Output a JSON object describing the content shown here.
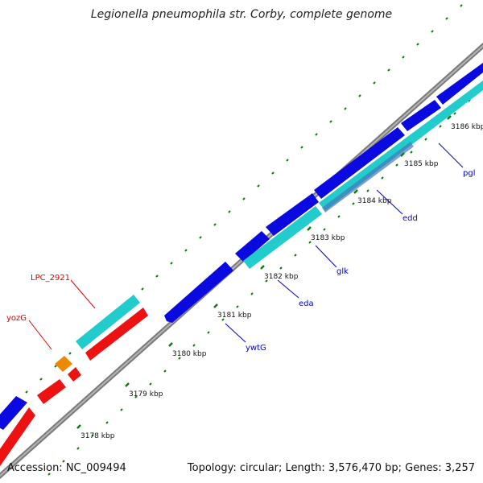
{
  "title": "Legionella pneumophila str. Corby, complete genome",
  "accession": "Accession: NC_009494",
  "summary": "Topology: circular; Length: 3,576,470 bp; Genes: 3,257",
  "colors": {
    "background": "#ffffff",
    "backbone": "#888888",
    "forward_gene": "#0000e0",
    "reverse_gene": "#ee1111",
    "blue_label": "#0000cc",
    "red_label": "#dd0000",
    "cds_teal": "#22cccc",
    "orange_feature": "#ee8800",
    "tick_green": "#117711"
  },
  "scale_ticks": [
    {
      "label": "3178 kbp"
    },
    {
      "label": "3179 kbp"
    },
    {
      "label": "3180 kbp"
    },
    {
      "label": "3181 kbp"
    },
    {
      "label": "3182 kbp"
    },
    {
      "label": "3183 kbp"
    },
    {
      "label": "3184 kbp"
    },
    {
      "label": "3185 kbp"
    },
    {
      "label": "3186 kbp"
    }
  ],
  "gene_labels": [
    {
      "name": "LPC_2921",
      "color": "red"
    },
    {
      "name": "yozG",
      "color": "red"
    },
    {
      "name": "ywtG",
      "color": "blue"
    },
    {
      "name": "eda",
      "color": "blue"
    },
    {
      "name": "glk",
      "color": "blue"
    },
    {
      "name": "edd",
      "color": "blue"
    },
    {
      "name": "pgl",
      "color": "blue"
    }
  ]
}
